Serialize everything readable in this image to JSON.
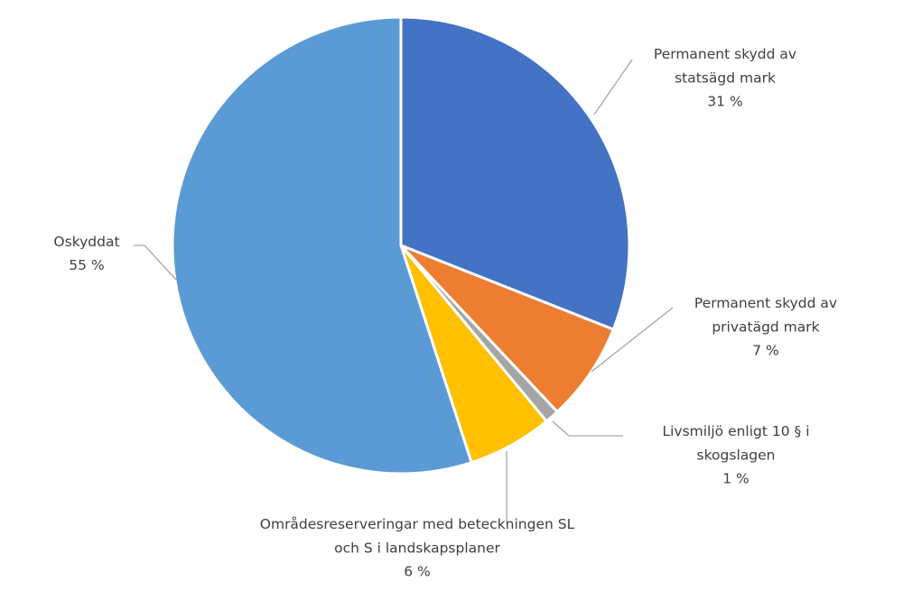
{
  "chart_data": {
    "type": "pie",
    "categories": [
      "Permanent skydd av statsägd mark",
      "Permanent skydd av privatägd mark",
      "Livsmiljö enligt 10 § i skogslagen",
      "Områdesreserveringar med beteckningen SL och S i landskapsplaner",
      "Oskyddat"
    ],
    "values": [
      31,
      7,
      1,
      6,
      55
    ],
    "value_labels": [
      "31 %",
      "7 %",
      "1 %",
      "6 %",
      "55 %"
    ],
    "colors": [
      "#4472c4",
      "#ed7d31",
      "#a5a5a5",
      "#ffc000",
      "#5b9bd5"
    ]
  }
}
